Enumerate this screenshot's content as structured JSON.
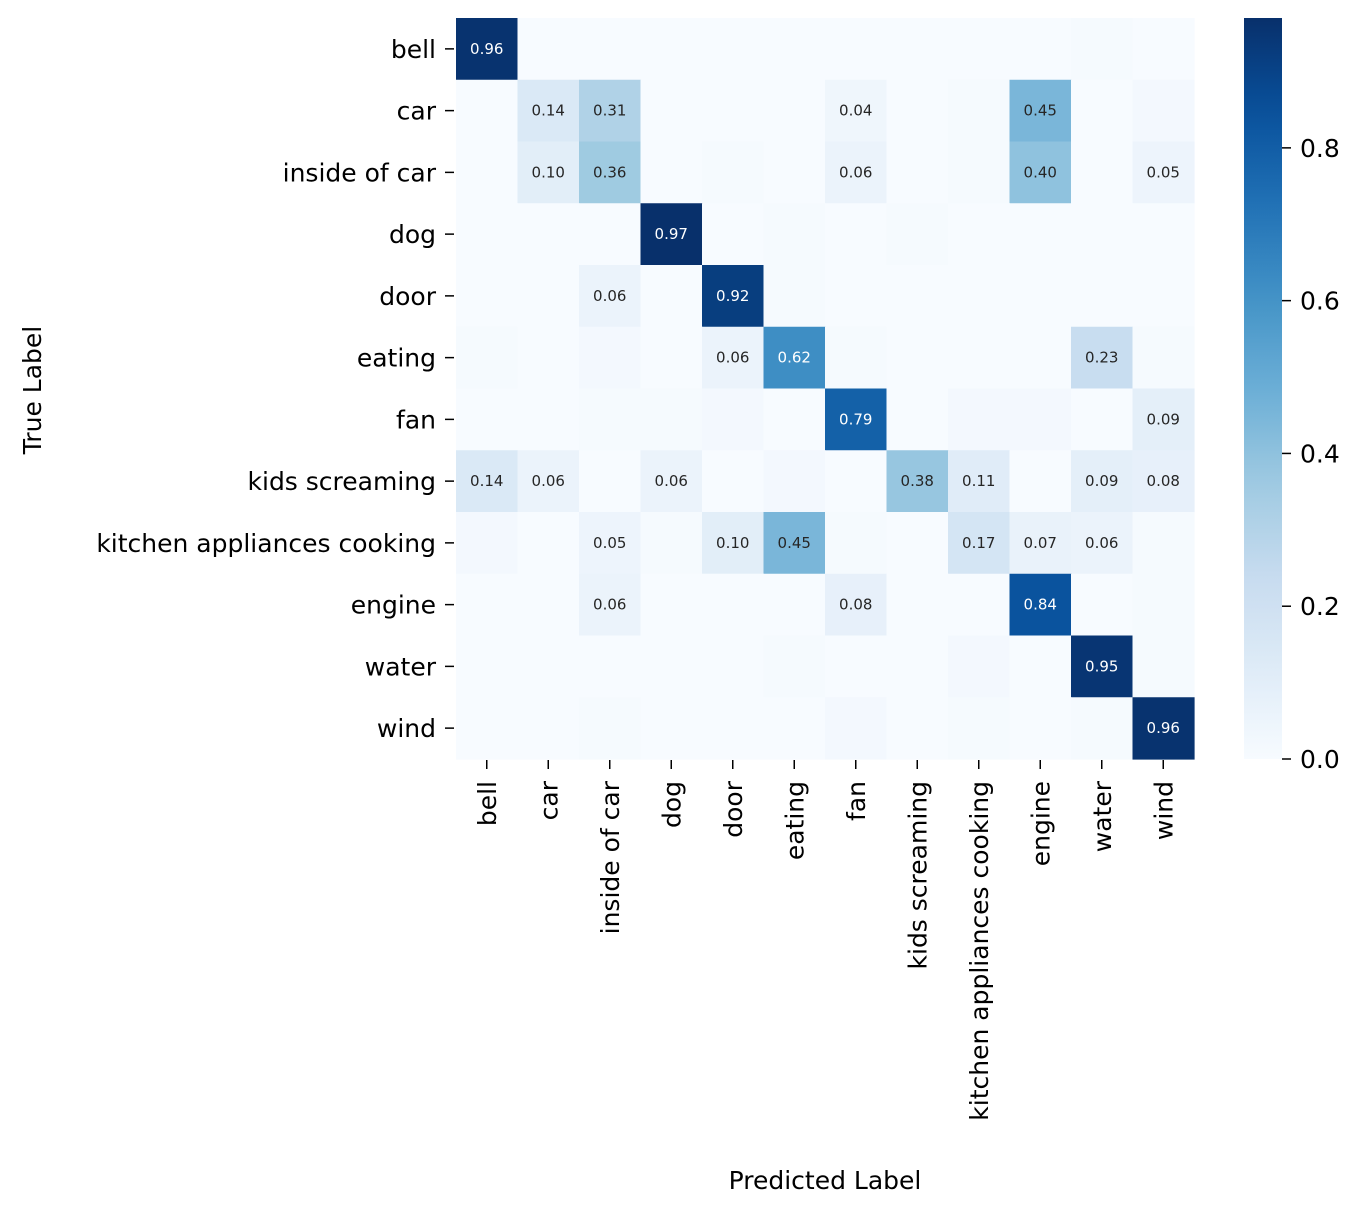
{
  "chart_data": {
    "type": "heatmap",
    "xlabel": "Predicted Label",
    "ylabel": "True Label",
    "categories": [
      "bell",
      "car",
      "inside of car",
      "dog",
      "door",
      "eating",
      "fan",
      "kids screaming",
      "kitchen appliances cooking",
      "engine",
      "water",
      "wind"
    ],
    "matrix": [
      [
        0.96,
        0,
        0,
        0,
        0,
        0,
        0,
        0,
        0,
        0,
        0.01,
        0
      ],
      [
        0,
        0.14,
        0.31,
        0,
        0,
        0,
        0.04,
        0,
        0.01,
        0.45,
        0,
        0.02
      ],
      [
        0,
        0.1,
        0.36,
        0,
        0.01,
        0,
        0.06,
        0,
        0.01,
        0.4,
        0,
        0.05
      ],
      [
        0,
        0,
        0,
        0.97,
        0,
        0.01,
        0,
        0.01,
        0,
        0,
        0,
        0
      ],
      [
        0,
        0,
        0.06,
        0,
        0.92,
        0.01,
        0,
        0,
        0,
        0,
        0,
        0
      ],
      [
        0.01,
        0,
        0.02,
        0,
        0.06,
        0.62,
        0.01,
        0,
        0,
        0,
        0.23,
        0.01
      ],
      [
        0,
        0,
        0.01,
        0.01,
        0.02,
        0,
        0.79,
        0,
        0.02,
        0.02,
        0,
        0.09
      ],
      [
        0.14,
        0.06,
        0,
        0.06,
        0,
        0.02,
        0,
        0.38,
        0.11,
        0,
        0.09,
        0.08
      ],
      [
        0.02,
        0,
        0.05,
        0.01,
        0.1,
        0.45,
        0.01,
        0,
        0.17,
        0.07,
        0.06,
        0.01
      ],
      [
        0,
        0,
        0.06,
        0,
        0,
        0,
        0.08,
        0,
        0,
        0.84,
        0,
        0.01
      ],
      [
        0,
        0,
        0,
        0,
        0,
        0.01,
        0,
        0,
        0.02,
        0,
        0.95,
        0.01
      ],
      [
        0,
        0,
        0.01,
        0,
        0,
        0,
        0.02,
        0,
        0.01,
        0,
        0.01,
        0.96
      ]
    ],
    "annotation_threshold": 0.04,
    "colormap": "Blues",
    "vmin": 0.0,
    "vmax": 0.97,
    "colorbar_ticks": [
      "0.0",
      "0.2",
      "0.4",
      "0.6",
      "0.8"
    ],
    "colors": {
      "low": "#f7fbff",
      "high": "#08306b"
    }
  }
}
